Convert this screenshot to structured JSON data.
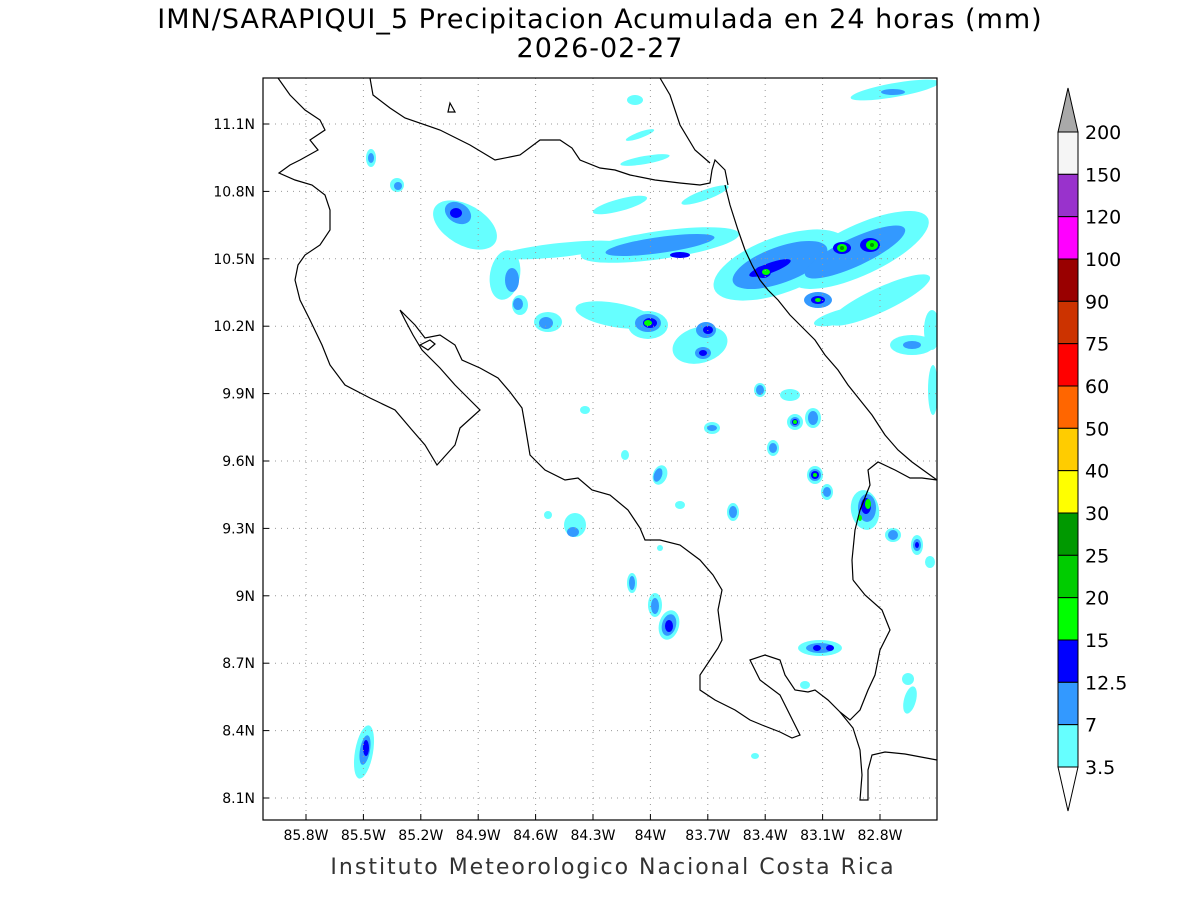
{
  "title_line1": "IMN/SARAPIQUI_5 Precipitacion Acumulada en 24 horas (mm)",
  "title_line2": "2026-02-27",
  "footer": "Instituto Meteorologico Nacional Costa Rica",
  "map": {
    "lon_range": [
      -86.0,
      -82.5
    ],
    "lat_range": [
      8.0,
      11.3
    ],
    "lon_ticks": [
      "85.8W",
      "85.5W",
      "85.2W",
      "84.9W",
      "84.6W",
      "84.3W",
      "84W",
      "83.7W",
      "83.4W",
      "83.1W",
      "82.8W"
    ],
    "lat_ticks": [
      "11.1N",
      "10.8N",
      "10.5N",
      "10.2N",
      "9.9N",
      "9.6N",
      "9.3N",
      "9N",
      "8.7N",
      "8.4N",
      "8.1N"
    ],
    "grid": true
  },
  "colorbar": {
    "levels": [
      "200",
      "150",
      "120",
      "100",
      "90",
      "75",
      "60",
      "50",
      "40",
      "30",
      "25",
      "20",
      "15",
      "12.5",
      "7",
      "3.5"
    ],
    "colors": [
      "#f5f5f5",
      "#9932cc",
      "#ff00ff",
      "#990000",
      "#cc3300",
      "#ff0000",
      "#ff6600",
      "#ffcc00",
      "#ffff00",
      "#009900",
      "#00cc00",
      "#00ff00",
      "#0000ff",
      "#3399ff",
      "#66ffff"
    ],
    "top_arrow_color": "#a9a9a9",
    "bottom_arrow_color": "#ffffff"
  },
  "precip_palette": {
    "light": "#66ffff",
    "moderate": "#3399ff",
    "heavy": "#0000ff",
    "very_heavy": "#00ff00",
    "extreme": "#009900"
  }
}
